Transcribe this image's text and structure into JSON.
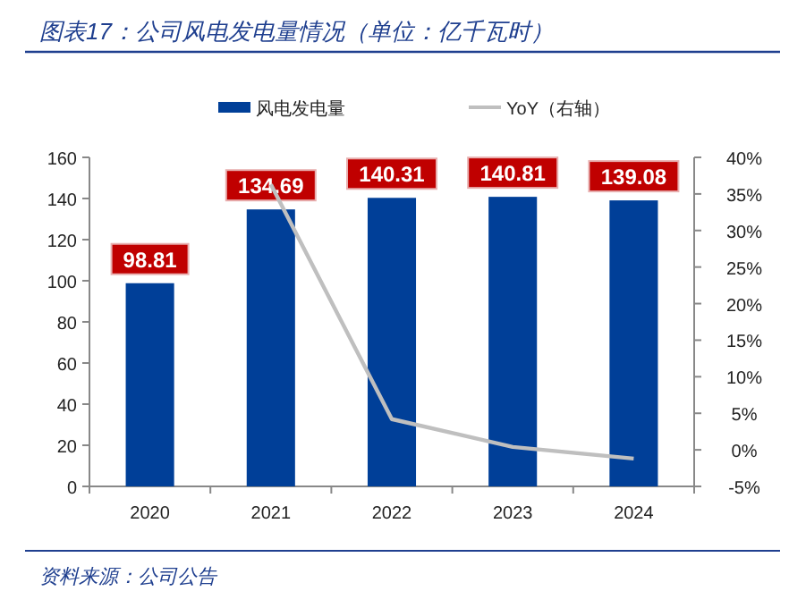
{
  "chart_data": {
    "type": "bar",
    "title": "图表17：公司风电发电量情况（单位：亿千瓦时）",
    "categories": [
      "2020",
      "2021",
      "2022",
      "2023",
      "2024"
    ],
    "series": [
      {
        "name": "风电发电量",
        "color": "#003f98",
        "values": [
          98.81,
          134.69,
          140.31,
          140.81,
          139.08
        ],
        "value_labels": [
          "98.81",
          "134.69",
          "140.31",
          "140.81",
          "139.08"
        ]
      },
      {
        "name": "YoY（右轴）",
        "type": "line",
        "axis": "y2",
        "color": "#bfbfbf",
        "values": [
          null,
          36.3,
          4.2,
          0.4,
          -1.2
        ]
      }
    ],
    "ylim": [
      0,
      160
    ],
    "yticks": [
      0,
      20,
      40,
      60,
      80,
      100,
      120,
      140,
      160
    ],
    "y2lim": [
      -5,
      40
    ],
    "y2ticks": [
      {
        "value": -5,
        "label": "-5%"
      },
      {
        "value": 0,
        "label": "0%"
      },
      {
        "value": 5,
        "label": "5%"
      },
      {
        "value": 10,
        "label": "10%"
      },
      {
        "value": 15,
        "label": "15%"
      },
      {
        "value": 20,
        "label": "20%"
      },
      {
        "value": 25,
        "label": "25%"
      },
      {
        "value": 30,
        "label": "30%"
      },
      {
        "value": 35,
        "label": "35%"
      },
      {
        "value": 40,
        "label": "40%"
      }
    ],
    "legend": "top",
    "grid": false,
    "annotations": [
      "资料来源：公司公告"
    ]
  }
}
